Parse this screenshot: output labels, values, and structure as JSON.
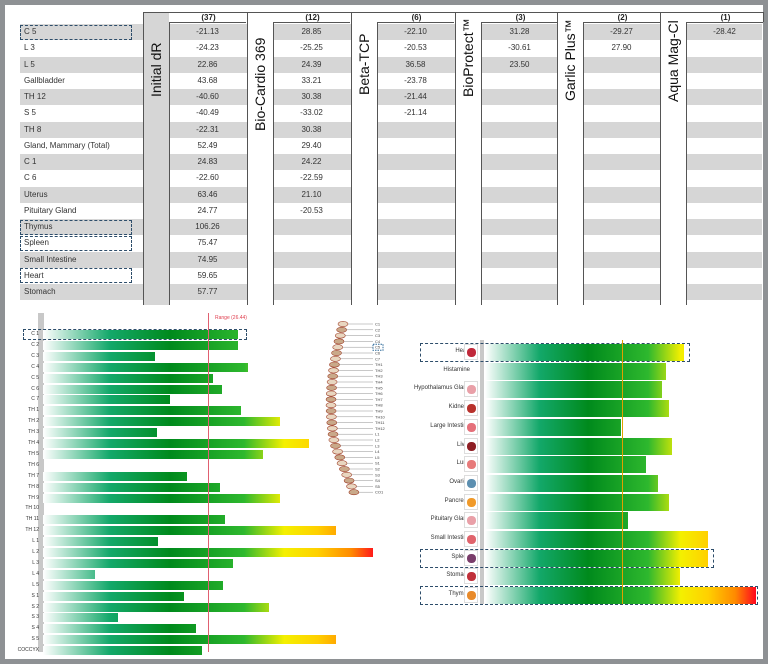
{
  "table": {
    "columns": [
      {
        "title": "Initial dR",
        "count": "(37)"
      },
      {
        "title": "Bio-Cardio 369",
        "count": "(12)"
      },
      {
        "title": "Beta-TCP",
        "count": "(6)"
      },
      {
        "title": "BioProtect™",
        "count": "(3)"
      },
      {
        "title": "Garlic Plus™",
        "count": "(2)"
      },
      {
        "title": "Aqua Mag-Cl",
        "count": "(1)"
      }
    ],
    "rows": [
      {
        "label": "C 5",
        "values": [
          "-21.13",
          "28.85",
          "-22.10",
          "31.28",
          "-29.27",
          "-28.42"
        ],
        "highlighted": true
      },
      {
        "label": "L 3",
        "values": [
          "-24.23",
          "-25.25",
          "-20.53",
          "-30.61",
          "27.90",
          ""
        ]
      },
      {
        "label": "L 5",
        "values": [
          "22.86",
          "24.39",
          "36.58",
          "23.50",
          "",
          ""
        ]
      },
      {
        "label": "Gallbladder",
        "values": [
          "43.68",
          "33.21",
          "-23.78",
          "",
          "",
          ""
        ]
      },
      {
        "label": "TH 12",
        "values": [
          "-40.60",
          "30.38",
          "-21.44",
          "",
          "",
          ""
        ]
      },
      {
        "label": "S 5",
        "values": [
          "-40.49",
          "-33.02",
          "-21.14",
          "",
          "",
          ""
        ]
      },
      {
        "label": "TH 8",
        "values": [
          "-22.31",
          "30.38",
          "",
          "",
          "",
          ""
        ]
      },
      {
        "label": "Gland, Mammary (Total)",
        "values": [
          "52.49",
          "29.40",
          "",
          "",
          "",
          ""
        ]
      },
      {
        "label": "C 1",
        "values": [
          "24.83",
          "24.22",
          "",
          "",
          "",
          ""
        ]
      },
      {
        "label": "C 6",
        "values": [
          "-22.60",
          "-22.59",
          "",
          "",
          "",
          ""
        ]
      },
      {
        "label": "Uterus",
        "values": [
          "63.46",
          "21.10",
          "",
          "",
          "",
          ""
        ]
      },
      {
        "label": "Pituitary Gland",
        "values": [
          "24.77",
          "-20.53",
          "",
          "",
          "",
          ""
        ]
      },
      {
        "label": "Thymus",
        "values": [
          "106.26",
          "",
          "",
          "",
          "",
          ""
        ],
        "highlighted": true
      },
      {
        "label": "Spleen",
        "values": [
          "75.47",
          "",
          "",
          "",
          "",
          ""
        ],
        "highlighted": true
      },
      {
        "label": "Small Intestine",
        "values": [
          "74.95",
          "",
          "",
          "",
          "",
          ""
        ]
      },
      {
        "label": "Heart",
        "values": [
          "59.65",
          "",
          "",
          "",
          "",
          ""
        ],
        "highlighted": true
      },
      {
        "label": "Stomach",
        "values": [
          "57.77",
          "",
          "",
          "",
          "",
          ""
        ]
      }
    ]
  },
  "chart_data": [
    {
      "type": "bar",
      "orientation": "horizontal",
      "range_label": "Range (26.44)",
      "range": 26.44,
      "categories": [
        "C 1",
        "C 2",
        "C 3",
        "C 4",
        "C 5",
        "C 6",
        "C 7",
        "TH 1",
        "TH 2",
        "TH 3",
        "TH 4",
        "TH 5",
        "TH 6",
        "TH 7",
        "TH 8",
        "TH 9",
        "TH 10",
        "TH 11",
        "TH 12",
        "L 1",
        "L 2",
        "L 3",
        "L 4",
        "L 5",
        "S 1",
        "S 2",
        "S 3",
        "S 4",
        "S 5",
        "COCCYX"
      ],
      "values": [
        31.3,
        31.3,
        18.0,
        32.8,
        27.2,
        28.7,
        20.4,
        31.8,
        38.0,
        18.2,
        42.7,
        35.3,
        0,
        23.1,
        28.3,
        37.9,
        0,
        29.1,
        47.0,
        18.5,
        52.8,
        30.5,
        8.4,
        28.9,
        22.6,
        36.2,
        12.0,
        24.5,
        47.0,
        25.5
      ],
      "highlighted": [
        "C 1"
      ],
      "spine_labels": [
        "C1",
        "C2",
        "C3",
        "C4",
        "C5",
        "C6",
        "C7",
        "TH1",
        "TH2",
        "TH3",
        "TH4",
        "TH5",
        "TH6",
        "TH7",
        "TH8",
        "TH9",
        "TH10",
        "TH11",
        "TH12",
        "L1",
        "L2",
        "L3",
        "L4",
        "L5",
        "S1",
        "S2",
        "S3",
        "S4",
        "S5",
        "CO1"
      ],
      "spine_highlighted": "C5"
    },
    {
      "type": "bar",
      "orientation": "horizontal",
      "range": 26.44,
      "categories": [
        "Heart",
        "Histamine",
        "Hypothalamus Gland",
        "Kidneys",
        "Large Intestine",
        "Liver",
        "Lung",
        "Ovaries",
        "Pancreas",
        "Pituitary Gland",
        "Small Intestine",
        "Spleen",
        "Stomach",
        "Thymus"
      ],
      "icons": [
        "heart-icon",
        "",
        "hypothalamus-icon",
        "kidneys-icon",
        "large-intestine-icon",
        "liver-icon",
        "lung-icon",
        "ovaries-icon",
        "pancreas-icon",
        "pituitary-icon",
        "small-intestine-icon",
        "spleen-icon",
        "stomach-icon",
        "thymus-icon"
      ],
      "icon_colors": [
        "#c0283a",
        "",
        "#e9a0a8",
        "#b8322c",
        "#e5707a",
        "#8e1e24",
        "#e77a7a",
        "#5c8fb0",
        "#f09a2a",
        "#e9a0a8",
        "#e0646c",
        "#7a3d6a",
        "#c0303a",
        "#e88a2a"
      ],
      "values": [
        38.5,
        35.0,
        34.2,
        35.6,
        26.4,
        36.1,
        31.2,
        33.5,
        35.5,
        27.7,
        43.2,
        43.2,
        37.8,
        52.5
      ],
      "highlighted": [
        "Heart",
        "Spleen",
        "Thymus"
      ]
    }
  ],
  "colors": {
    "gradient": [
      "#ffffff",
      "#13a86a",
      "#008a1c",
      "#2eb82e",
      "#f4f000",
      "#ffd000",
      "#ff8a00",
      "#ff0020"
    ],
    "range_line": "#e06070",
    "stripe": "#d6d6d6",
    "highlight_border": "#2d4d6a"
  }
}
